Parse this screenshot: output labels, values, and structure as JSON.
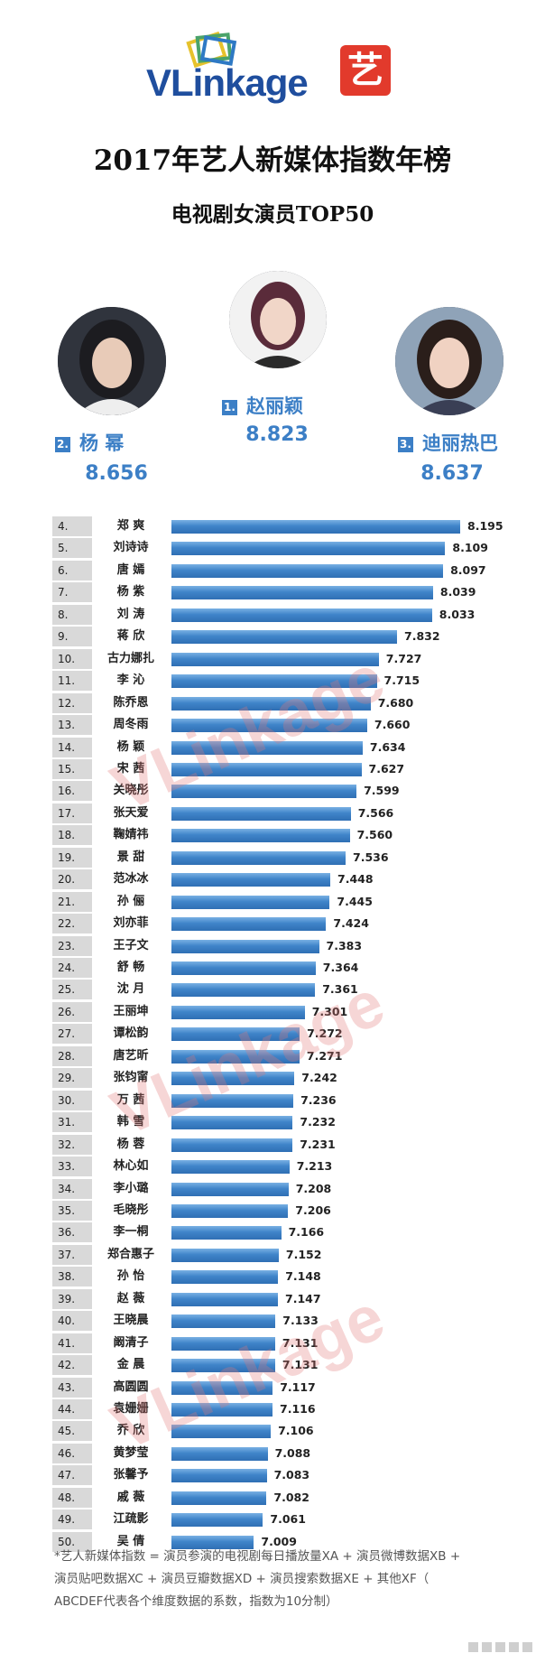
{
  "header": {
    "logo_text": "VLinkage",
    "badge_char": "艺",
    "title": "2017年艺人新媒体指数年榜",
    "subtitle": "电视剧女演员TOP50",
    "watermark": "VLinkage"
  },
  "top3": [
    {
      "rank": "2.",
      "name": "杨  幂",
      "score": "8.656"
    },
    {
      "rank": "1.",
      "name": "赵丽颖",
      "score": "8.823"
    },
    {
      "rank": "3.",
      "name": "迪丽热巴",
      "score": "8.637"
    }
  ],
  "footnote": [
    "*艺人新媒体指数 = 演员参演的电视剧每日播放量XA + 演员微博数据XB +",
    "演员贴吧数据XC + 演员豆瓣数据XD + 演员搜索数据XE + 其他XF（",
    "ABCDEF代表各个维度数据的系数，指数为10分制）"
  ],
  "colors": {
    "accent": "#3c7fc6",
    "bar": "#3f84c9",
    "rank_bg": "#d9d9d9",
    "badge": "#e23a2c"
  },
  "chart_data": {
    "type": "bar",
    "orientation": "horizontal",
    "title": "电视剧女演员TOP50",
    "ranks": [
      "4.",
      "5.",
      "6.",
      "7.",
      "8.",
      "9.",
      "10.",
      "11.",
      "12.",
      "13.",
      "14.",
      "15.",
      "16.",
      "17.",
      "18.",
      "19.",
      "20.",
      "21.",
      "22.",
      "23.",
      "24.",
      "25.",
      "26.",
      "27.",
      "28.",
      "29.",
      "30.",
      "31.",
      "32.",
      "33.",
      "34.",
      "35.",
      "36.",
      "37.",
      "38.",
      "39.",
      "40.",
      "41.",
      "42.",
      "43.",
      "44.",
      "45.",
      "46.",
      "47.",
      "48.",
      "49.",
      "50."
    ],
    "categories": [
      "郑  爽",
      "刘诗诗",
      "唐  嫣",
      "杨  紫",
      "刘  涛",
      "蒋  欣",
      "古力娜扎",
      "李  沁",
      "陈乔恩",
      "周冬雨",
      "杨  颖",
      "宋  茜",
      "关晓彤",
      "张天爱",
      "鞠婧祎",
      "景  甜",
      "范冰冰",
      "孙  俪",
      "刘亦菲",
      "王子文",
      "舒  畅",
      "沈  月",
      "王丽坤",
      "谭松韵",
      "唐艺昕",
      "张钧甯",
      "万  茜",
      "韩  雪",
      "杨  蓉",
      "林心如",
      "李小璐",
      "毛晓彤",
      "李一桐",
      "郑合惠子",
      "孙  怡",
      "赵  薇",
      "王晓晨",
      "阚清子",
      "金  晨",
      "高圆圆",
      "袁姗姗",
      "乔  欣",
      "黄梦莹",
      "张馨予",
      "戚  薇",
      "江疏影",
      "吴  倩"
    ],
    "values": [
      8.195,
      8.109,
      8.097,
      8.039,
      8.033,
      7.832,
      7.727,
      7.715,
      7.68,
      7.66,
      7.634,
      7.627,
      7.599,
      7.566,
      7.56,
      7.536,
      7.448,
      7.445,
      7.424,
      7.383,
      7.364,
      7.361,
      7.301,
      7.272,
      7.271,
      7.242,
      7.236,
      7.232,
      7.231,
      7.213,
      7.208,
      7.206,
      7.166,
      7.152,
      7.148,
      7.147,
      7.133,
      7.131,
      7.131,
      7.117,
      7.116,
      7.106,
      7.088,
      7.083,
      7.082,
      7.061,
      7.009
    ],
    "value_labels": [
      "8.195",
      "8.109",
      "8.097",
      "8.039",
      "8.033",
      "7.832",
      "7.727",
      "7.715",
      "7.680",
      "7.660",
      "7.634",
      "7.627",
      "7.599",
      "7.566",
      "7.560",
      "7.536",
      "7.448",
      "7.445",
      "7.424",
      "7.383",
      "7.364",
      "7.361",
      "7.301",
      "7.272",
      "7.271",
      "7.242",
      "7.236",
      "7.232",
      "7.231",
      "7.213",
      "7.208",
      "7.206",
      "7.166",
      "7.152",
      "7.148",
      "7.147",
      "7.133",
      "7.131",
      "7.131",
      "7.117",
      "7.116",
      "7.106",
      "7.088",
      "7.083",
      "7.082",
      "7.061",
      "7.009"
    ],
    "grid": false,
    "legend": "none"
  }
}
